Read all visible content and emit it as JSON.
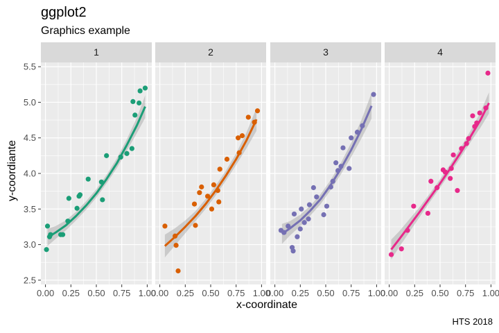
{
  "chart_data": {
    "type": "scatter",
    "title": "ggplot2",
    "subtitle": "Graphics example",
    "xlabel": "x-coordinate",
    "ylabel": "y-coordiante",
    "caption": "HTS 2018",
    "xlim": [
      0,
      1
    ],
    "ylim": [
      2.5,
      5.5
    ],
    "x_ticks": [
      "0.00",
      "0.25",
      "0.50",
      "0.75",
      "1.00"
    ],
    "y_ticks": [
      "2.5",
      "3.0",
      "3.5",
      "4.0",
      "4.5",
      "5.0",
      "5.5"
    ],
    "grid": true,
    "panel_background": "#ebebeb",
    "strip_background": "#d9d9d9",
    "ribbon_color": "#999999",
    "panels": [
      {
        "label": "1",
        "color": "#1b9e77",
        "points": [
          [
            0.01,
            2.93
          ],
          [
            0.02,
            3.26
          ],
          [
            0.04,
            3.11
          ],
          [
            0.05,
            3.14
          ],
          [
            0.15,
            3.14
          ],
          [
            0.17,
            3.14
          ],
          [
            0.22,
            3.33
          ],
          [
            0.23,
            3.65
          ],
          [
            0.31,
            3.51
          ],
          [
            0.33,
            3.68
          ],
          [
            0.34,
            3.7
          ],
          [
            0.42,
            3.92
          ],
          [
            0.55,
            3.88
          ],
          [
            0.56,
            3.63
          ],
          [
            0.6,
            4.25
          ],
          [
            0.74,
            4.23
          ],
          [
            0.8,
            4.28
          ],
          [
            0.85,
            4.35
          ],
          [
            0.86,
            5.01
          ],
          [
            0.88,
            4.82
          ],
          [
            0.92,
            4.99
          ],
          [
            0.93,
            5.16
          ],
          [
            0.98,
            5.2
          ]
        ],
        "fit": [
          [
            0.02,
            3.1
          ],
          [
            0.1,
            3.17
          ],
          [
            0.2,
            3.27
          ],
          [
            0.3,
            3.4
          ],
          [
            0.4,
            3.55
          ],
          [
            0.5,
            3.72
          ],
          [
            0.6,
            3.92
          ],
          [
            0.7,
            4.14
          ],
          [
            0.8,
            4.4
          ],
          [
            0.9,
            4.68
          ],
          [
            0.98,
            4.94
          ]
        ],
        "ci": [
          0.12,
          0.09,
          0.07,
          0.06,
          0.06,
          0.06,
          0.06,
          0.07,
          0.08,
          0.11,
          0.16
        ]
      },
      {
        "label": "2",
        "color": "#d95f02",
        "points": [
          [
            0.05,
            3.26
          ],
          [
            0.15,
            3.12
          ],
          [
            0.16,
            2.99
          ],
          [
            0.18,
            2.63
          ],
          [
            0.34,
            3.57
          ],
          [
            0.35,
            3.27
          ],
          [
            0.39,
            3.73
          ],
          [
            0.41,
            3.81
          ],
          [
            0.47,
            3.68
          ],
          [
            0.51,
            3.5
          ],
          [
            0.53,
            3.84
          ],
          [
            0.57,
            3.76
          ],
          [
            0.58,
            3.6
          ],
          [
            0.59,
            4.06
          ],
          [
            0.66,
            4.2
          ],
          [
            0.77,
            4.5
          ],
          [
            0.78,
            4.29
          ],
          [
            0.81,
            4.53
          ],
          [
            0.87,
            4.79
          ],
          [
            0.93,
            4.72
          ],
          [
            0.96,
            4.88
          ]
        ],
        "fit": [
          [
            0.05,
            2.98
          ],
          [
            0.15,
            3.11
          ],
          [
            0.25,
            3.25
          ],
          [
            0.35,
            3.4
          ],
          [
            0.45,
            3.57
          ],
          [
            0.55,
            3.76
          ],
          [
            0.65,
            3.97
          ],
          [
            0.75,
            4.2
          ],
          [
            0.85,
            4.46
          ],
          [
            0.95,
            4.76
          ]
        ],
        "ci": [
          0.16,
          0.12,
          0.09,
          0.07,
          0.07,
          0.07,
          0.07,
          0.08,
          0.11,
          0.16
        ]
      },
      {
        "label": "3",
        "color": "#7570b3",
        "points": [
          [
            0.06,
            3.2
          ],
          [
            0.09,
            3.17
          ],
          [
            0.13,
            3.26
          ],
          [
            0.17,
            2.96
          ],
          [
            0.18,
            2.91
          ],
          [
            0.19,
            3.43
          ],
          [
            0.22,
            3.11
          ],
          [
            0.25,
            3.22
          ],
          [
            0.26,
            3.5
          ],
          [
            0.29,
            3.31
          ],
          [
            0.33,
            3.36
          ],
          [
            0.34,
            3.56
          ],
          [
            0.38,
            3.8
          ],
          [
            0.41,
            3.67
          ],
          [
            0.48,
            3.42
          ],
          [
            0.51,
            3.54
          ],
          [
            0.55,
            3.81
          ],
          [
            0.57,
            3.89
          ],
          [
            0.6,
            4.15
          ],
          [
            0.62,
            4.04
          ],
          [
            0.65,
            4.1
          ],
          [
            0.67,
            4.36
          ],
          [
            0.73,
            4.07
          ],
          [
            0.75,
            4.5
          ],
          [
            0.81,
            4.58
          ],
          [
            0.86,
            4.67
          ],
          [
            0.97,
            5.11
          ]
        ],
        "fit": [
          [
            0.07,
            3.15
          ],
          [
            0.15,
            3.23
          ],
          [
            0.25,
            3.34
          ],
          [
            0.35,
            3.48
          ],
          [
            0.45,
            3.64
          ],
          [
            0.55,
            3.84
          ],
          [
            0.65,
            4.07
          ],
          [
            0.75,
            4.33
          ],
          [
            0.85,
            4.62
          ],
          [
            0.95,
            4.95
          ]
        ],
        "ci": [
          0.14,
          0.1,
          0.08,
          0.07,
          0.07,
          0.07,
          0.08,
          0.1,
          0.13,
          0.18
        ]
      },
      {
        "label": "4",
        "color": "#e7298a",
        "points": [
          [
            0.02,
            2.86
          ],
          [
            0.12,
            2.94
          ],
          [
            0.18,
            3.2
          ],
          [
            0.24,
            3.54
          ],
          [
            0.38,
            3.44
          ],
          [
            0.41,
            3.89
          ],
          [
            0.47,
            3.8
          ],
          [
            0.53,
            4.05
          ],
          [
            0.55,
            4.02
          ],
          [
            0.6,
            3.93
          ],
          [
            0.61,
            4.07
          ],
          [
            0.63,
            4.26
          ],
          [
            0.67,
            3.76
          ],
          [
            0.71,
            4.35
          ],
          [
            0.76,
            4.42
          ],
          [
            0.78,
            4.49
          ],
          [
            0.82,
            4.81
          ],
          [
            0.84,
            4.66
          ],
          [
            0.86,
            4.71
          ],
          [
            0.89,
            4.85
          ],
          [
            0.95,
            4.92
          ],
          [
            0.97,
            5.41
          ]
        ],
        "fit": [
          [
            0.02,
            2.93
          ],
          [
            0.1,
            3.08
          ],
          [
            0.2,
            3.27
          ],
          [
            0.3,
            3.46
          ],
          [
            0.4,
            3.66
          ],
          [
            0.5,
            3.86
          ],
          [
            0.6,
            4.07
          ],
          [
            0.7,
            4.29
          ],
          [
            0.8,
            4.52
          ],
          [
            0.9,
            4.76
          ],
          [
            0.98,
            4.99
          ]
        ],
        "ci": [
          0.14,
          0.11,
          0.09,
          0.07,
          0.06,
          0.06,
          0.06,
          0.07,
          0.08,
          0.11,
          0.15
        ]
      }
    ]
  }
}
